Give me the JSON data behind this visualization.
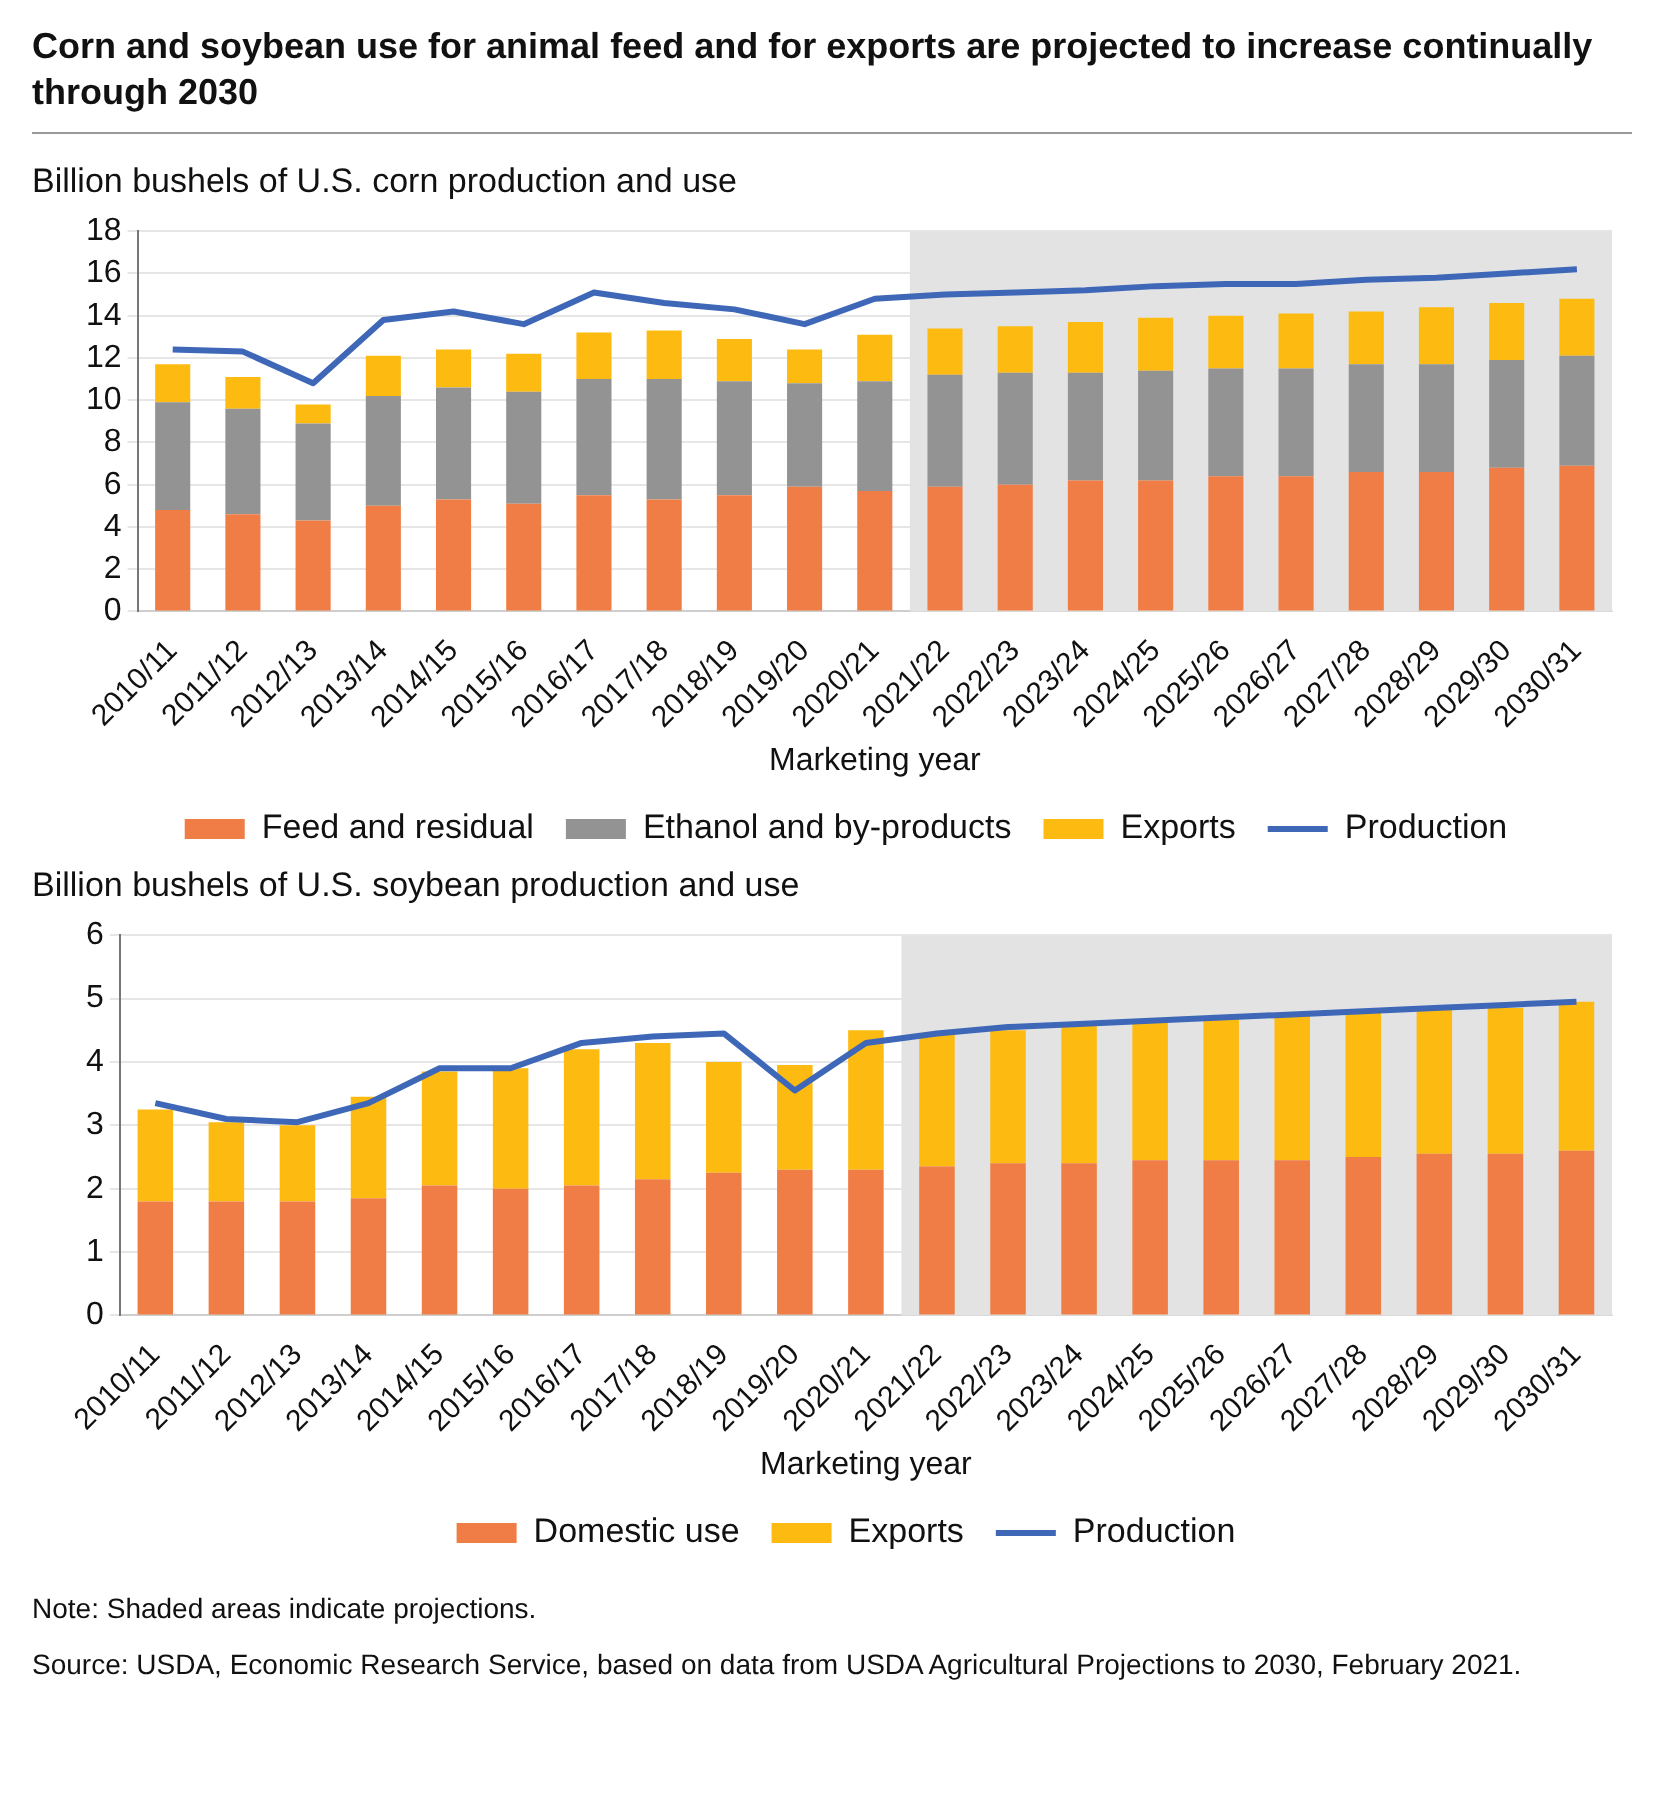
{
  "chart_data": [
    {
      "type": "bar",
      "title": "Corn and soybean use for animal feed and for exports are projected to increase continually through 2030",
      "subtitle": "Billion bushels of U.S. corn production and use",
      "xlabel": "Marketing year",
      "categories": [
        "2010/11",
        "2011/12",
        "2012/13",
        "2013/14",
        "2014/15",
        "2015/16",
        "2016/17",
        "2017/18",
        "2018/19",
        "2019/20",
        "2020/21",
        "2021/22",
        "2022/23",
        "2023/24",
        "2024/25",
        "2025/26",
        "2026/27",
        "2027/28",
        "2028/29",
        "2029/30",
        "2030/31"
      ],
      "stacked": true,
      "series": [
        {
          "name": "Feed and residual",
          "color": "#f07d45",
          "values": [
            4.8,
            4.6,
            4.3,
            5.0,
            5.3,
            5.1,
            5.5,
            5.3,
            5.5,
            5.9,
            5.7,
            5.9,
            6.0,
            6.2,
            6.2,
            6.4,
            6.4,
            6.6,
            6.6,
            6.8,
            6.9
          ]
        },
        {
          "name": "Ethanol and by-products",
          "color": "#939393",
          "values": [
            5.1,
            5.0,
            4.6,
            5.2,
            5.3,
            5.3,
            5.5,
            5.7,
            5.4,
            4.9,
            5.2,
            5.3,
            5.3,
            5.1,
            5.2,
            5.1,
            5.1,
            5.1,
            5.1,
            5.1,
            5.2
          ]
        },
        {
          "name": "Exports",
          "color": "#fdbb12",
          "values": [
            1.8,
            1.5,
            0.9,
            1.9,
            1.8,
            1.8,
            2.2,
            2.3,
            2.0,
            1.6,
            2.2,
            2.2,
            2.2,
            2.4,
            2.5,
            2.5,
            2.6,
            2.5,
            2.7,
            2.7,
            2.7
          ]
        },
        {
          "name": "Production",
          "type": "line",
          "color": "#3e67b8",
          "values": [
            12.4,
            12.3,
            10.8,
            13.8,
            14.2,
            13.6,
            15.1,
            14.6,
            14.3,
            13.6,
            14.8,
            15.0,
            15.1,
            15.2,
            15.4,
            15.5,
            15.5,
            15.7,
            15.8,
            16.0,
            16.2
          ]
        }
      ],
      "ylim": [
        0,
        18
      ],
      "yticks": [
        0,
        2,
        4,
        6,
        8,
        10,
        12,
        14,
        16,
        18
      ],
      "bands": [
        {
          "axis": "x",
          "from": "2021/22",
          "to": "2030/31",
          "color": "#e3e3e3"
        }
      ],
      "grid": "y",
      "legend": "bottom",
      "marker": "none",
      "line_style": "solid"
    },
    {
      "type": "bar",
      "subtitle": "Billion bushels of U.S. soybean production and use",
      "xlabel": "Marketing year",
      "categories": [
        "2010/11",
        "2011/12",
        "2012/13",
        "2013/14",
        "2014/15",
        "2015/16",
        "2016/17",
        "2017/18",
        "2018/19",
        "2019/20",
        "2020/21",
        "2021/22",
        "2022/23",
        "2023/24",
        "2024/25",
        "2025/26",
        "2026/27",
        "2027/28",
        "2028/29",
        "2029/30",
        "2030/31"
      ],
      "stacked": true,
      "series": [
        {
          "name": "Domestic use",
          "color": "#f07d45",
          "values": [
            1.8,
            1.8,
            1.8,
            1.85,
            2.05,
            2.0,
            2.05,
            2.15,
            2.25,
            2.3,
            2.3,
            2.35,
            2.4,
            2.4,
            2.45,
            2.45,
            2.45,
            2.5,
            2.55,
            2.55,
            2.6
          ]
        },
        {
          "name": "Exports",
          "color": "#fdbb12",
          "values": [
            1.45,
            1.25,
            1.2,
            1.6,
            1.8,
            1.9,
            2.15,
            2.15,
            1.75,
            1.65,
            2.2,
            2.1,
            2.1,
            2.2,
            2.2,
            2.25,
            2.3,
            2.3,
            2.3,
            2.3,
            2.35
          ]
        },
        {
          "name": "Production",
          "type": "line",
          "color": "#3e67b8",
          "values": [
            3.35,
            3.1,
            3.05,
            3.35,
            3.9,
            3.9,
            4.3,
            4.4,
            4.45,
            3.55,
            4.3,
            4.45,
            4.55,
            4.6,
            4.65,
            4.7,
            4.75,
            4.8,
            4.85,
            4.9,
            4.95
          ]
        }
      ],
      "ylim": [
        0,
        6
      ],
      "yticks": [
        0,
        1,
        2,
        3,
        4,
        5,
        6
      ],
      "bands": [
        {
          "axis": "x",
          "from": "2021/22",
          "to": "2030/31",
          "color": "#e3e3e3"
        }
      ],
      "grid": "y",
      "legend": "bottom",
      "marker": "none",
      "line_style": "solid",
      "annotations": [
        "Note: Shaded areas indicate projections.",
        "Source: USDA, Economic Research Service, based on data from USDA Agricultural Projections to 2030, February 2021."
      ]
    }
  ]
}
